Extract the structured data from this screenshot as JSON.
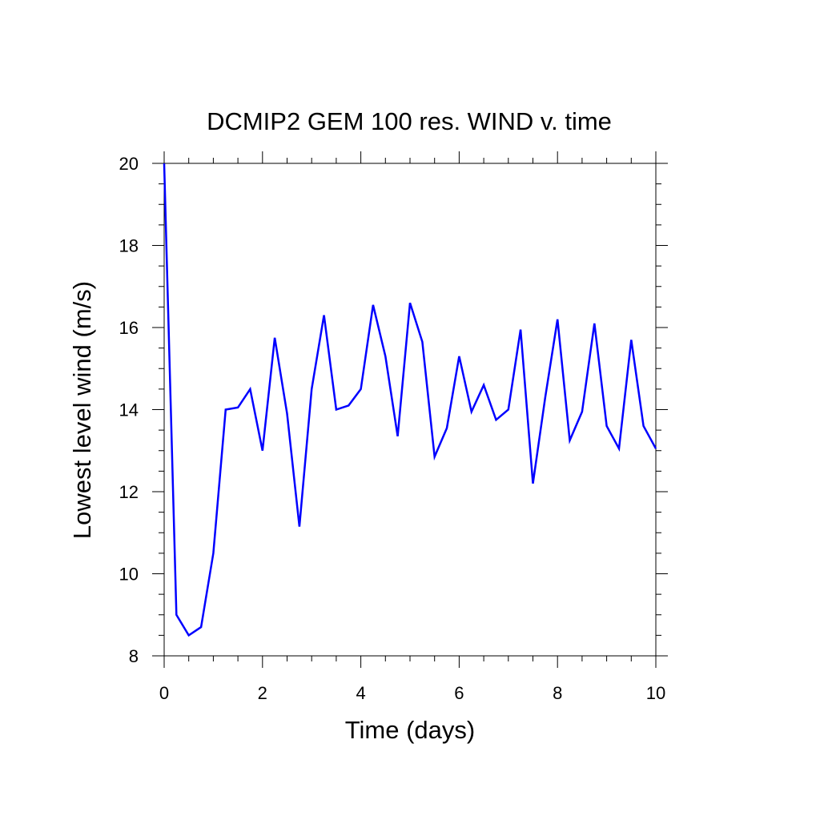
{
  "chart_data": {
    "type": "line",
    "title": "DCMIP2 GEM 100 res. WIND v. time",
    "xlabel": "Time (days)",
    "ylabel": "Lowest level wind (m/s)",
    "xlim": [
      0,
      10
    ],
    "ylim": [
      8,
      20
    ],
    "xticks": [
      "0",
      "2",
      "4",
      "6",
      "8",
      "10"
    ],
    "yticks": [
      "8",
      "10",
      "12",
      "14",
      "16",
      "18",
      "20"
    ],
    "grid": false,
    "legend": "none",
    "series": [
      {
        "color": "#0000ff",
        "x": [
          0,
          0.25,
          0.5,
          0.75,
          1.0,
          1.25,
          1.5,
          1.75,
          2.0,
          2.25,
          2.5,
          2.75,
          3.0,
          3.25,
          3.5,
          3.75,
          4.0,
          4.25,
          4.5,
          4.75,
          5.0,
          5.25,
          5.5,
          5.75,
          6.0,
          6.25,
          6.5,
          6.75,
          7.0,
          7.25,
          7.5,
          7.75,
          8.0,
          8.25,
          8.5,
          8.75,
          9.0,
          9.25,
          9.5,
          9.75,
          10.0
        ],
        "y": [
          20.0,
          9.0,
          8.5,
          8.7,
          10.5,
          14.0,
          14.05,
          14.5,
          13.0,
          15.75,
          13.9,
          11.15,
          14.5,
          16.3,
          14.0,
          14.1,
          14.5,
          16.55,
          15.3,
          13.35,
          16.6,
          15.65,
          12.85,
          13.55,
          15.3,
          13.95,
          14.6,
          13.75,
          14.0,
          15.95,
          12.2,
          14.3,
          16.2,
          13.25,
          13.95,
          16.1,
          13.6,
          13.05,
          15.7,
          13.6,
          13.05
        ]
      }
    ]
  }
}
